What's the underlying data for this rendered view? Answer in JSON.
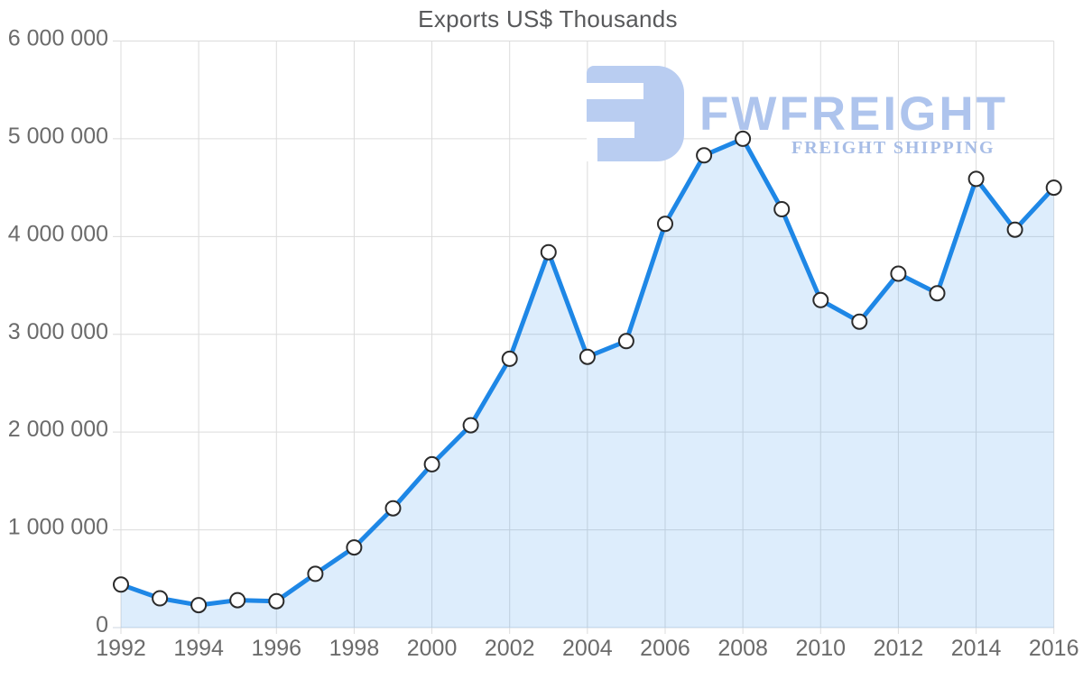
{
  "chart": {
    "title": "Exports US$ Thousands"
  },
  "watermark": {
    "brand": "FWFREIGHT",
    "tagline": "FREIGHT SHIPPING",
    "brand_color": "#aec4ed",
    "tagline_color": "#a6bce6",
    "glyph_color": "#b9cdf1"
  },
  "chart_data": {
    "type": "area",
    "title": "Exports US$ Thousands",
    "xlabel": "",
    "ylabel": "",
    "x": [
      1992,
      1993,
      1994,
      1995,
      1996,
      1997,
      1998,
      1999,
      2000,
      2001,
      2002,
      2003,
      2004,
      2005,
      2006,
      2007,
      2008,
      2009,
      2010,
      2011,
      2012,
      2013,
      2014,
      2015,
      2016
    ],
    "series": [
      {
        "name": "Exports US$ Thousands",
        "values": [
          440000,
          300000,
          230000,
          280000,
          270000,
          550000,
          820000,
          1220000,
          1670000,
          2070000,
          2750000,
          3840000,
          2770000,
          2930000,
          4130000,
          4830000,
          5000000,
          4280000,
          3350000,
          3130000,
          3620000,
          3420000,
          4590000,
          4070000,
          4500000
        ]
      }
    ],
    "ylim": [
      0,
      6000000
    ],
    "ytick_interval": 1000000,
    "xtick_interval": 2,
    "grid": true,
    "legend": "none",
    "line_color": "#1e87e6",
    "fill_color_rgba": [
      29,
      135,
      232,
      0.15
    ],
    "marker_style": "white circle, dark ring",
    "grid_color": "#dcdcdc",
    "axis_line_color": "#cdd7e2",
    "tick_label_color": "#6b6b6b"
  }
}
